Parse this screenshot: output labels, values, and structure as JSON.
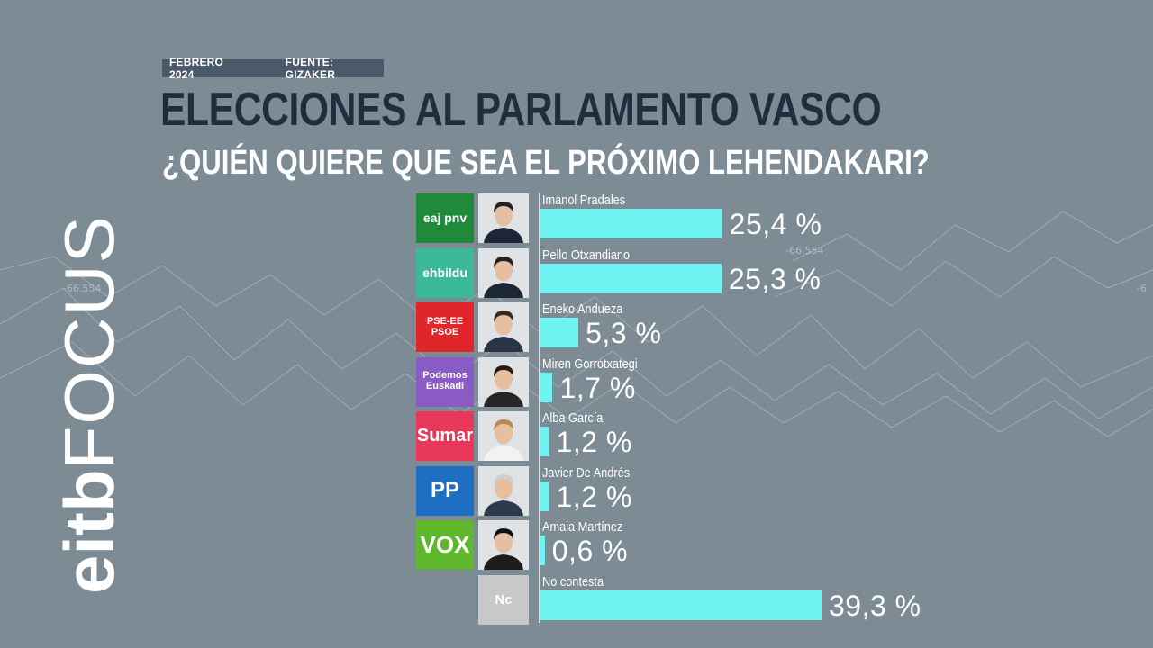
{
  "header": {
    "date": "FEBRERO 2024",
    "source": "FUENTE: GIZAKER"
  },
  "brand": {
    "part1": "eitb",
    "part2": "FOCUS"
  },
  "chart_data": {
    "type": "bar",
    "orientation": "horizontal",
    "title": "ELECCIONES AL PARLAMENTO VASCO",
    "subtitle": "¿QUIÉN QUIERE QUE SEA EL PRÓXIMO LEHENDAKARI?",
    "xlim": [
      0,
      45
    ],
    "bar_color": "#6ef2f2",
    "categories": [
      "Imanol Pradales",
      "Pello Otxandiano",
      "Eneko Andueza",
      "Miren Gorrotxategi",
      "Alba García",
      "Javier De Andrés",
      "Amaia Martínez",
      "No contesta"
    ],
    "values": [
      25.4,
      25.3,
      5.3,
      1.7,
      1.2,
      1.2,
      0.6,
      39.3
    ],
    "value_labels": [
      "25,4 %",
      "25,3 %",
      "5,3 %",
      "1,7 %",
      "1,2 %",
      "1,2 %",
      "0,6 %",
      "39,3 %"
    ]
  },
  "parties": [
    {
      "logo_text": "eaj pnv",
      "color": "#1f8a3a",
      "icon": "pnv-logo"
    },
    {
      "logo_text": "ehbildu",
      "color": "#3cb89a",
      "icon": "ehbildu-logo"
    },
    {
      "logo_text": "PSE-EE PSOE",
      "color": "#e0262a",
      "icon": "psoe-logo"
    },
    {
      "logo_text": "Podemos Euskadi",
      "color": "#8a5bc4",
      "icon": "podemos-logo"
    },
    {
      "logo_text": "Sumar",
      "color": "#e8385a",
      "icon": "sumar-logo"
    },
    {
      "logo_text": "PP",
      "color": "#1e6fc4",
      "icon": "pp-logo"
    },
    {
      "logo_text": "VOX",
      "color": "#5fb72d",
      "icon": "vox-logo"
    },
    {
      "logo_text": "Nc",
      "color": "#c8c8c8",
      "icon": "nc-placeholder"
    }
  ]
}
